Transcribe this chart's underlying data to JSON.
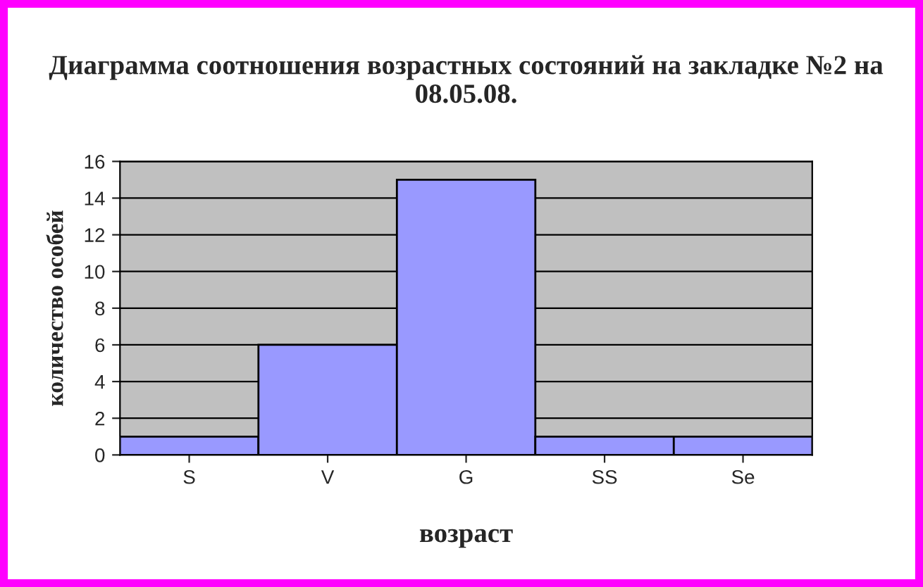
{
  "chart_data": {
    "type": "bar",
    "title": "Диаграмма соотношения возрастных состояний на закладке №2 на 08.05.08.",
    "xlabel": "возраст",
    "ylabel": "количество особей",
    "categories": [
      "S",
      "V",
      "G",
      "SS",
      "Se"
    ],
    "values": [
      1,
      6,
      15,
      1,
      1
    ],
    "color": "#9999ff",
    "ylim": [
      0,
      16
    ],
    "yticks": [
      0,
      2,
      4,
      6,
      8,
      10,
      12,
      14,
      16
    ],
    "grid": "y",
    "legend": false
  }
}
